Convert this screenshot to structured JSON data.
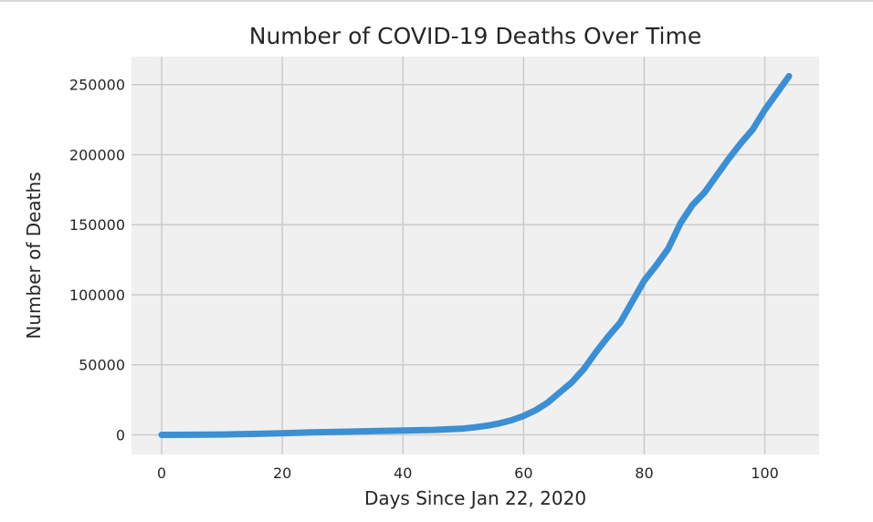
{
  "chart_data": {
    "type": "line",
    "title": "Number of COVID-19 Deaths Over Time",
    "xlabel": "Days Since Jan 22, 2020",
    "ylabel": "Number of Deaths",
    "xlim": [
      -5,
      109
    ],
    "ylim": [
      -14000,
      270000
    ],
    "x_ticks": [
      0,
      20,
      40,
      60,
      80,
      100
    ],
    "y_ticks": [
      0,
      50000,
      100000,
      150000,
      200000,
      250000
    ],
    "x_tick_labels": [
      "0",
      "20",
      "40",
      "60",
      "80",
      "100"
    ],
    "y_tick_labels": [
      "0",
      "50000",
      "100000",
      "150000",
      "200000",
      "250000"
    ],
    "grid": true,
    "colors": {
      "plot_background": "#f0f0f0",
      "grid": "#cbcbcb",
      "line": "#3c8fd2",
      "text": "#262626"
    },
    "series": [
      {
        "x": [
          0,
          5,
          10,
          15,
          20,
          25,
          30,
          35,
          40,
          45,
          50,
          52,
          54,
          56,
          58,
          60,
          62,
          64,
          66,
          68,
          70,
          72,
          74,
          76,
          78,
          80,
          82,
          84,
          86,
          88,
          90,
          92,
          94,
          96,
          98,
          100,
          102,
          104
        ],
        "values": [
          17,
          56,
          259,
          639,
          1100,
          1771,
          2250,
          2700,
          3100,
          3500,
          4500,
          5400,
          6600,
          8200,
          10400,
          13500,
          17600,
          23000,
          30300,
          37500,
          47000,
          59000,
          70000,
          80000,
          95000,
          110000,
          121000,
          133000,
          151000,
          164000,
          173000,
          185000,
          197000,
          208000,
          218000,
          232000,
          244000,
          256000
        ]
      }
    ]
  }
}
